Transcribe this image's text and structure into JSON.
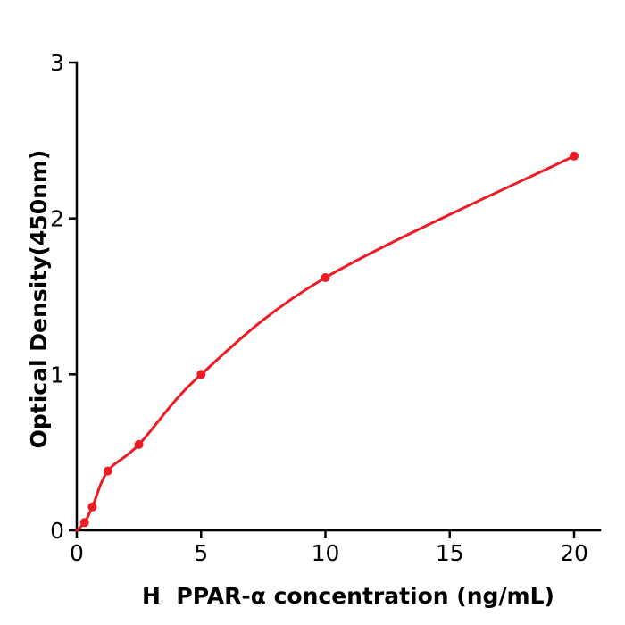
{
  "chart_data": {
    "type": "scatter",
    "title": "",
    "xlabel": "H  PPAR-α concentration (ng/mL)",
    "ylabel": "Optical Density(450nm)",
    "x": [
      0.313,
      0.625,
      1.25,
      2.5,
      5,
      10,
      20
    ],
    "y": [
      0.05,
      0.15,
      0.38,
      0.55,
      1.0,
      1.62,
      2.4
    ],
    "curve_start": {
      "x": 0,
      "y": 0
    },
    "xticks": [
      "0",
      "5",
      "10",
      "15",
      "20"
    ],
    "xtick_values": [
      0,
      5,
      10,
      15,
      20
    ],
    "yticks": [
      "0",
      "1",
      "2",
      "3"
    ],
    "ytick_values": [
      0,
      1,
      2,
      3
    ],
    "xlim": [
      0,
      20
    ],
    "ylim": [
      0,
      3
    ],
    "grid": false,
    "colors": {
      "series": "#ed1c24",
      "axis": "#000000",
      "background": "#ffffff"
    }
  }
}
